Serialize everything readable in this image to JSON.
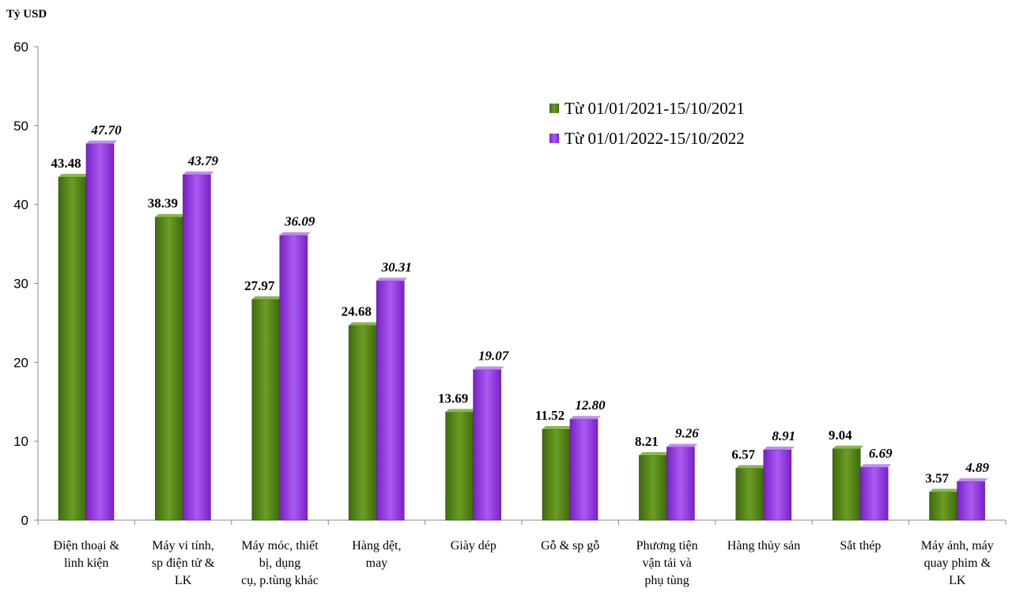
{
  "chart_data": {
    "type": "bar",
    "ylabel": "Tỷ USD",
    "ylim": [
      0,
      60
    ],
    "yticks": [
      0,
      10,
      20,
      30,
      40,
      50,
      60
    ],
    "grid": false,
    "legend_placement": "top-right",
    "categories": [
      "Điện thoại &\nlinh kiện",
      "Máy vi tính,\nsp điện tử &\nLK",
      "Máy móc, thiết\nbị, dụng\ncụ, p.tùng khác",
      "Hàng dệt,\nmay",
      "Giày dép",
      "Gỗ & sp  gỗ",
      "Phương tiện\nvận tải và\nphụ tùng",
      "Hàng thủy sản",
      "Sắt thép",
      "Máy ảnh, máy\nquay phim &\nLK"
    ],
    "series": [
      {
        "name": "Từ 01/01/2021-15/10/2021",
        "color": "#5a8a1a",
        "values": [
          43.48,
          38.39,
          27.97,
          24.68,
          13.69,
          11.52,
          8.21,
          6.57,
          9.04,
          3.57
        ],
        "labels": [
          "43.48",
          "38.39",
          "27.97",
          "24.68",
          "13.69",
          "11.52",
          "8.21",
          "6.57",
          "9.04",
          "3.57"
        ]
      },
      {
        "name": "Từ 01/01/2022-15/10/2022",
        "color": "#9b3fe0",
        "values": [
          47.7,
          43.79,
          36.09,
          30.31,
          19.07,
          12.8,
          9.26,
          8.91,
          6.69,
          4.89
        ],
        "labels": [
          "47.70",
          "43.79",
          "36.09",
          "30.31",
          "19.07",
          "12.80",
          "9.26",
          "8.91",
          "6.69",
          "4.89"
        ]
      }
    ]
  }
}
